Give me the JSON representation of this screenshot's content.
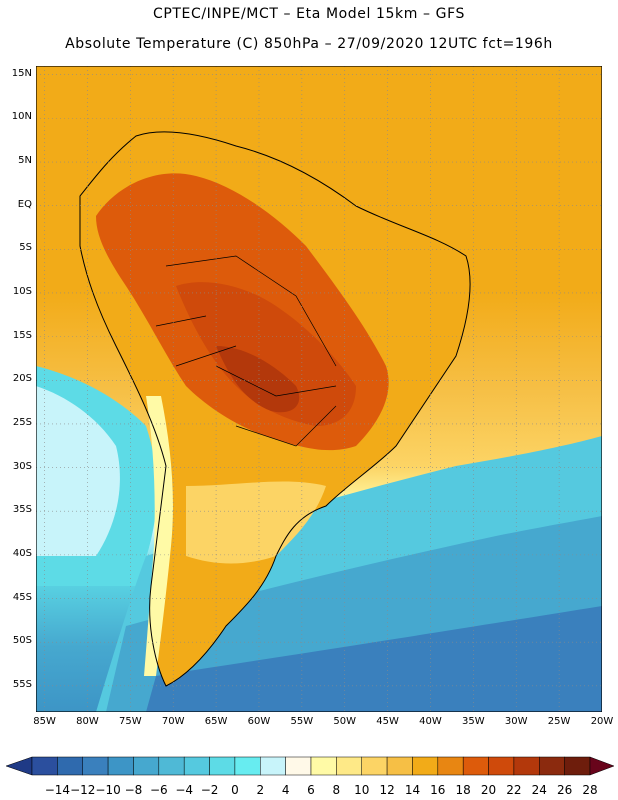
{
  "header": {
    "line1": "CPTEC/INPE/MCT –  Eta Model 15km – GFS",
    "line2": "Absolute Temperature (C) 850hPa – 27/09/2020 12UTC fct=196h"
  },
  "axes": {
    "lat_labels": [
      "15N",
      "10N",
      "5N",
      "EQ",
      "5S",
      "10S",
      "15S",
      "20S",
      "25S",
      "30S",
      "35S",
      "40S",
      "45S",
      "50S",
      "55S"
    ],
    "lon_labels": [
      "85W",
      "80W",
      "75W",
      "70W",
      "65W",
      "60W",
      "55W",
      "50W",
      "45W",
      "40W",
      "35W",
      "30W",
      "25W",
      "20W"
    ],
    "lat_range": [
      -58,
      16
    ],
    "lon_range": [
      -86,
      -20
    ]
  },
  "colorbar": {
    "labels": [
      "-14",
      "-12",
      "-10",
      "-8",
      "-6",
      "-4",
      "-2",
      "0",
      "2",
      "4",
      "6",
      "8",
      "10",
      "12",
      "14",
      "16",
      "18",
      "20",
      "22",
      "24",
      "26",
      "28"
    ],
    "colors": [
      "#2b4f9e",
      "#2f6aae",
      "#3a80bd",
      "#3d95c6",
      "#46a8cf",
      "#4fb9d6",
      "#55c9df",
      "#5ddbe6",
      "#67ecf0",
      "#c8f4fa",
      "#fff9e8",
      "#fffaa6",
      "#fee987",
      "#fcd465",
      "#f6bf45",
      "#f2ab18",
      "#e88612",
      "#dd5b0b",
      "#cf4a0b",
      "#b3380b",
      "#8b2a0e",
      "#6e1d0c"
    ],
    "min_arrow_color": "#1f3a86",
    "max_arrow_color": "#68041b"
  }
}
